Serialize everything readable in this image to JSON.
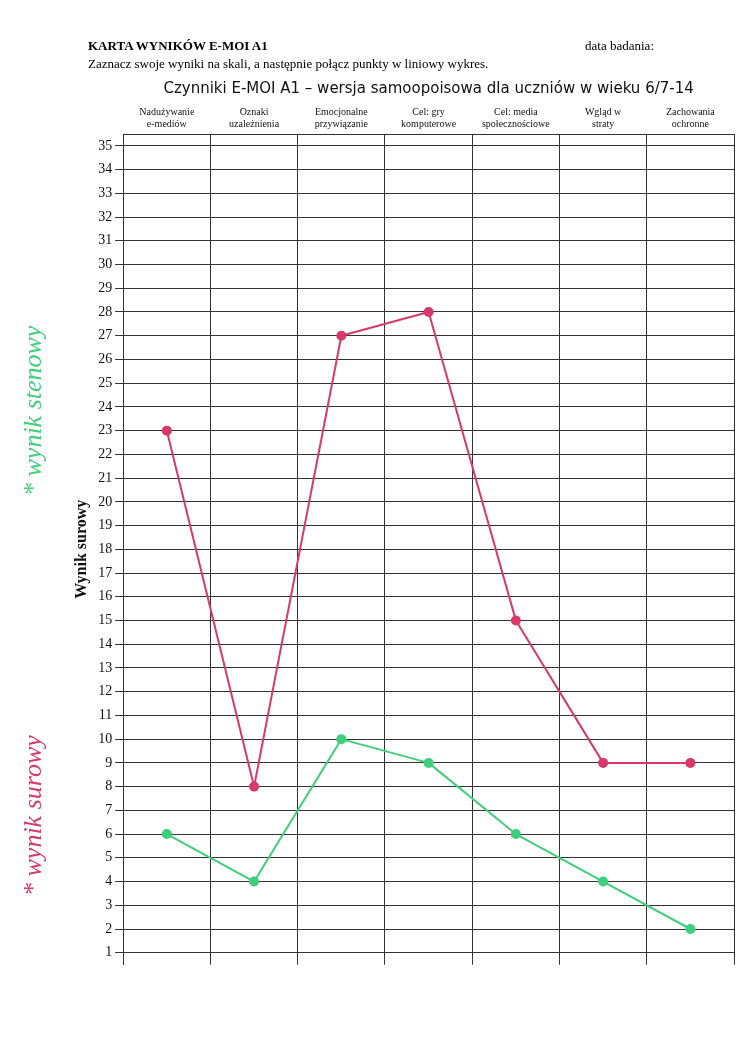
{
  "chart_data": {
    "type": "line",
    "title": "KARTA WYNIKÓW E-MOI A1",
    "subtitle": "Zaznacz swoje wyniki na skali, a następnie połącz punkty w liniowy wykres.",
    "annotations": [
      "data badania:"
    ],
    "xlabel": "Czynniki E-MOI A1 – wersja samoopoisowa dla uczniów w wieku 6/7-14",
    "ylabel": "Wynik surowy",
    "categories": [
      "Nadużywanie e-mediów",
      "Oznaki uzależnienia",
      "Emocjonalne przywiązanie",
      "Cel: gry komputerowe",
      "Cel: media społecznościowe",
      "Wgląd w straty",
      "Zachowania ochronne"
    ],
    "series": [
      {
        "name": "* wynik surowy",
        "color": "#d8386a",
        "values": [
          23,
          8,
          27,
          28,
          15,
          9,
          9
        ]
      },
      {
        "name": "* wynik stenowy",
        "color": "#3fcf7c",
        "values": [
          6,
          4,
          10,
          9,
          6,
          4,
          2
        ]
      }
    ],
    "ylim": [
      0.5,
      35.5
    ],
    "yticks": [
      1,
      2,
      3,
      4,
      5,
      6,
      7,
      8,
      9,
      10,
      11,
      12,
      13,
      14,
      15,
      16,
      17,
      18,
      19,
      20,
      21,
      22,
      23,
      24,
      25,
      26,
      27,
      28,
      29,
      30,
      31,
      32,
      33,
      34,
      35
    ],
    "grid": true,
    "legend": "left",
    "marker": "circle",
    "line_style": "solid"
  }
}
